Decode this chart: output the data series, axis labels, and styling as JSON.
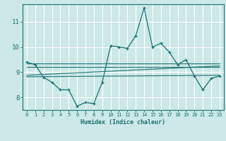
{
  "title": "",
  "xlabel": "Humidex (Indice chaleur)",
  "ylabel": "",
  "bg_color": "#cce8e8",
  "grid_color": "#ffffff",
  "line_color": "#1a7070",
  "xlim": [
    -0.5,
    23.5
  ],
  "ylim": [
    7.5,
    11.7
  ],
  "yticks": [
    8,
    9,
    10,
    11
  ],
  "xticks": [
    0,
    1,
    2,
    3,
    4,
    5,
    6,
    7,
    8,
    9,
    10,
    11,
    12,
    13,
    14,
    15,
    16,
    17,
    18,
    19,
    20,
    21,
    22,
    23
  ],
  "main_series_x": [
    0,
    1,
    2,
    3,
    4,
    5,
    6,
    7,
    8,
    9,
    10,
    11,
    12,
    13,
    14,
    15,
    16,
    17,
    18,
    19,
    20,
    21,
    22,
    23
  ],
  "main_series_y": [
    9.4,
    9.3,
    8.8,
    8.6,
    8.3,
    8.3,
    7.65,
    7.8,
    7.75,
    8.6,
    10.05,
    10.0,
    9.95,
    10.45,
    11.55,
    10.0,
    10.15,
    9.8,
    9.3,
    9.5,
    8.85,
    8.3,
    8.75,
    8.85
  ],
  "smooth_lines": [
    {
      "x": [
        0,
        23
      ],
      "y": [
        9.35,
        9.35
      ]
    },
    {
      "x": [
        0,
        23
      ],
      "y": [
        9.2,
        9.2
      ]
    },
    {
      "x": [
        0,
        23
      ],
      "y": [
        8.88,
        9.25
      ]
    },
    {
      "x": [
        0,
        23
      ],
      "y": [
        8.82,
        8.88
      ]
    }
  ]
}
